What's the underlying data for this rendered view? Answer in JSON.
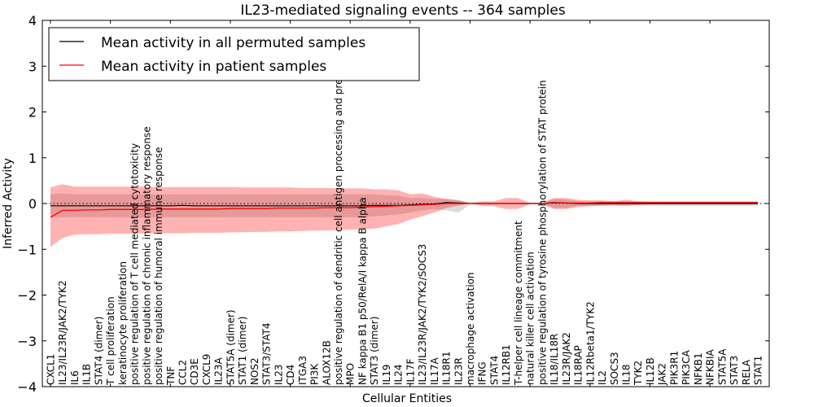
{
  "chart_data": {
    "type": "line",
    "title": "IL23-mediated signaling events -- 364 samples",
    "xlabel": "Cellular Entities",
    "ylabel": "Inferred Activity",
    "ylim": [
      -4,
      4
    ],
    "yticks": [
      -4,
      -3,
      -2,
      -1,
      0,
      1,
      2,
      3,
      4
    ],
    "ytick_labels": [
      "−4",
      "−3",
      "−2",
      "−1",
      "0",
      "1",
      "2",
      "3",
      "4"
    ],
    "grid": false,
    "legend": {
      "placement": "top-left",
      "entries": [
        {
          "label": "Mean activity in all permuted samples",
          "color": "#000000"
        },
        {
          "label": "Mean activity in patient samples",
          "color": "#ff0000"
        }
      ]
    },
    "colors": {
      "patient_line": "#ff0000",
      "permuted_line": "#000000",
      "patient_band": "#ff0000",
      "permuted_band": "#999999",
      "zero_line": "#000000"
    },
    "categories": [
      "CXCL1",
      "IL23/IL23R/JAK2/TYK2",
      "IL6",
      "IL1B",
      "STAT4 (dimer)",
      "T cell proliferation",
      "keratinocyte proliferation",
      "positive regulation of T cell mediated cytotoxicity",
      "positive regulation of chronic inflammatory response",
      "positive regulation of humoral immune response",
      "TNF",
      "CCL2",
      "CD3E",
      "CXCL9",
      "IL23A",
      "STAT5A (dimer)",
      "STAT1 (dimer)",
      "NOS2",
      "STAT3/STAT4",
      "IL23",
      "CD4",
      "ITGA3",
      "PI3K",
      "ALOX12B",
      "positive regulation of dendritic cell antigen processing and presentation",
      "MPO",
      "NF kappa B1 p50/RelA/I kappa B alpha",
      "STAT3 (dimer)",
      "IL19",
      "IL24",
      "IL17F",
      "IL23/IL23R/JAK2/TYK2/SOCS3",
      "IL17A",
      "IL18R1",
      "IL23R",
      "macrophage activation",
      "IFNG",
      "STAT4",
      "IL12RB1",
      "T-helper cell lineage commitment",
      "natural killer cell activation",
      "positive regulation of tyrosine phosphorylation of STAT protein",
      "IL18/IL18R",
      "IL23R/JAK2",
      "IL18RAP",
      "IL12Rbeta1/TYK2",
      "IL2",
      "SOCS3",
      "IL18",
      "TYK2",
      "IL12B",
      "JAK2",
      "PIK3R1",
      "PIK3CA",
      "NFKB1",
      "NFKBIA",
      "STAT5A",
      "STAT3",
      "RELA",
      "STAT1"
    ],
    "series": [
      {
        "name": "Mean activity in patient samples",
        "values": [
          -0.3,
          -0.15,
          -0.15,
          -0.14,
          -0.14,
          -0.13,
          -0.13,
          -0.13,
          -0.13,
          -0.12,
          -0.12,
          -0.12,
          -0.12,
          -0.12,
          -0.12,
          -0.11,
          -0.11,
          -0.11,
          -0.11,
          -0.1,
          -0.1,
          -0.1,
          -0.1,
          -0.09,
          -0.09,
          -0.09,
          -0.08,
          -0.07,
          -0.06,
          -0.05,
          -0.04,
          -0.03,
          -0.02,
          0.0,
          0.0,
          0.0,
          0.0,
          0.0,
          0.0,
          0.0,
          0.0,
          0.0,
          0.01,
          0.01,
          0.01,
          0.01,
          0.02,
          0.02,
          0.02,
          0.02,
          0.02,
          0.02,
          0.02,
          0.02,
          0.02,
          0.02,
          0.02,
          0.02,
          0.02,
          0.02
        ],
        "upper": [
          0.35,
          0.42,
          0.37,
          0.37,
          0.37,
          0.37,
          0.37,
          0.37,
          0.37,
          0.36,
          0.36,
          0.36,
          0.36,
          0.36,
          0.36,
          0.36,
          0.35,
          0.35,
          0.35,
          0.35,
          0.35,
          0.34,
          0.34,
          0.34,
          0.33,
          0.33,
          0.33,
          0.31,
          0.31,
          0.29,
          0.2,
          0.22,
          0.15,
          0.1,
          0.07,
          0.01,
          0.05,
          0.05,
          0.12,
          0.12,
          0.01,
          0.01,
          0.12,
          0.12,
          0.08,
          0.07,
          0.07,
          0.05,
          0.08,
          0.05,
          0.04,
          0.04,
          0.04,
          0.04,
          0.04,
          0.04,
          0.04,
          0.04,
          0.04,
          0.04
        ],
        "lower": [
          -0.95,
          -0.75,
          -0.68,
          -0.67,
          -0.67,
          -0.66,
          -0.66,
          -0.66,
          -0.65,
          -0.65,
          -0.65,
          -0.65,
          -0.64,
          -0.64,
          -0.64,
          -0.63,
          -0.63,
          -0.62,
          -0.62,
          -0.61,
          -0.61,
          -0.6,
          -0.59,
          -0.59,
          -0.58,
          -0.57,
          -0.56,
          -0.55,
          -0.5,
          -0.45,
          -0.35,
          -0.28,
          -0.2,
          -0.1,
          -0.05,
          0.0,
          -0.05,
          -0.06,
          -0.12,
          -0.12,
          -0.01,
          0.0,
          -0.12,
          -0.12,
          -0.08,
          -0.06,
          -0.05,
          -0.04,
          -0.05,
          -0.03,
          -0.02,
          -0.02,
          -0.02,
          -0.02,
          -0.02,
          -0.02,
          -0.02,
          -0.02,
          -0.02,
          -0.02
        ]
      },
      {
        "name": "Mean activity in all permuted samples",
        "values": [
          -0.05,
          -0.05,
          -0.05,
          -0.05,
          -0.05,
          -0.05,
          -0.05,
          -0.05,
          -0.05,
          -0.05,
          -0.05,
          -0.04,
          -0.05,
          -0.05,
          -0.05,
          -0.05,
          -0.05,
          -0.05,
          -0.05,
          -0.05,
          -0.05,
          -0.05,
          -0.05,
          -0.05,
          -0.05,
          -0.05,
          -0.05,
          -0.04,
          -0.04,
          -0.04,
          -0.03,
          -0.02,
          -0.01,
          0.02,
          0.01,
          0.0,
          0.0,
          0.0,
          0.0,
          0.0,
          0.0,
          0.0,
          0.02,
          0.01,
          0.0,
          0.0,
          0.0,
          0.0,
          0.0,
          0.0,
          0.0,
          0.0,
          0.0,
          0.0,
          0.0,
          0.0,
          0.0,
          0.0,
          0.0,
          0.0
        ],
        "upper": [
          0.2,
          0.22,
          0.2,
          0.2,
          0.2,
          0.2,
          0.2,
          0.2,
          0.2,
          0.2,
          0.2,
          0.2,
          0.2,
          0.2,
          0.2,
          0.2,
          0.2,
          0.2,
          0.2,
          0.2,
          0.2,
          0.2,
          0.2,
          0.2,
          0.2,
          0.2,
          0.2,
          0.2,
          0.18,
          0.17,
          0.12,
          0.12,
          0.1,
          0.1,
          0.08,
          0.02,
          0.02,
          0.02,
          0.02,
          0.02,
          0.02,
          0.02,
          0.1,
          0.08,
          0.05,
          0.05,
          0.05,
          0.05,
          0.05,
          0.05,
          0.05,
          0.05,
          0.05,
          0.05,
          0.05,
          0.05,
          0.05,
          0.05,
          0.05,
          0.05
        ],
        "lower": [
          -0.3,
          -0.3,
          -0.3,
          -0.3,
          -0.3,
          -0.3,
          -0.3,
          -0.3,
          -0.3,
          -0.3,
          -0.3,
          -0.3,
          -0.3,
          -0.3,
          -0.3,
          -0.3,
          -0.3,
          -0.3,
          -0.3,
          -0.3,
          -0.3,
          -0.3,
          -0.3,
          -0.3,
          -0.3,
          -0.3,
          -0.3,
          -0.28,
          -0.26,
          -0.24,
          -0.2,
          -0.15,
          -0.12,
          -0.15,
          -0.2,
          -0.02,
          -0.02,
          -0.02,
          -0.02,
          -0.02,
          -0.02,
          -0.02,
          -0.1,
          -0.1,
          -0.05,
          -0.05,
          -0.05,
          -0.05,
          -0.05,
          -0.05,
          -0.05,
          -0.05,
          -0.05,
          -0.05,
          -0.05,
          -0.05,
          -0.05,
          -0.05,
          -0.05,
          -0.05
        ]
      }
    ],
    "reference_line": {
      "y": 0,
      "style": "dotted"
    }
  }
}
